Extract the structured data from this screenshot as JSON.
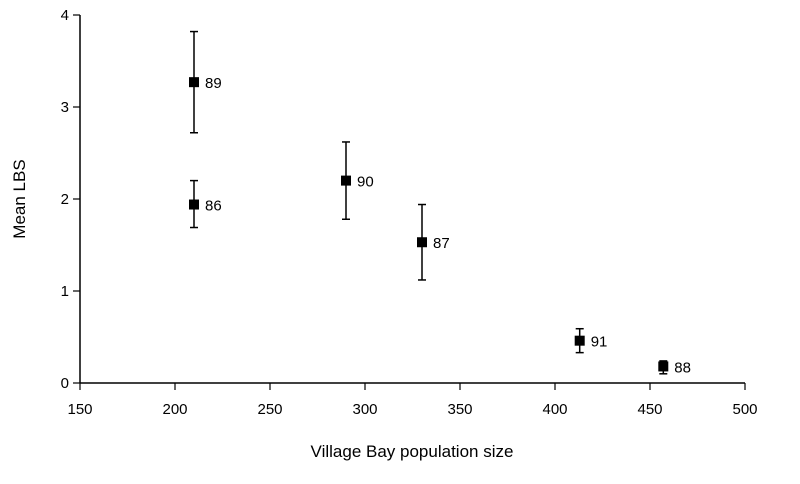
{
  "chart_data": {
    "type": "scatter",
    "title": "",
    "xlabel": "Village Bay population size",
    "ylabel": "Mean LBS",
    "xlim": [
      150,
      500
    ],
    "ylim": [
      0,
      4
    ],
    "xticks": [
      "150",
      "200",
      "250",
      "300",
      "350",
      "400",
      "450",
      "500"
    ],
    "yticks": [
      "0",
      "1",
      "2",
      "3",
      "4"
    ],
    "grid": false,
    "legend": "none",
    "marker": "square",
    "color": "#000000",
    "points": [
      {
        "label": "89",
        "x": 210,
        "y": 3.27,
        "err_low": 2.72,
        "err_high": 3.82
      },
      {
        "label": "86",
        "x": 210,
        "y": 1.94,
        "err_low": 1.69,
        "err_high": 2.2
      },
      {
        "label": "90",
        "x": 290,
        "y": 2.2,
        "err_low": 1.78,
        "err_high": 2.62
      },
      {
        "label": "87",
        "x": 330,
        "y": 1.53,
        "err_low": 1.12,
        "err_high": 1.94
      },
      {
        "label": "91",
        "x": 413,
        "y": 0.46,
        "err_low": 0.33,
        "err_high": 0.59
      },
      {
        "label": "88",
        "x": 457,
        "y": 0.18,
        "err_low": 0.1,
        "err_high": 0.24
      }
    ]
  }
}
